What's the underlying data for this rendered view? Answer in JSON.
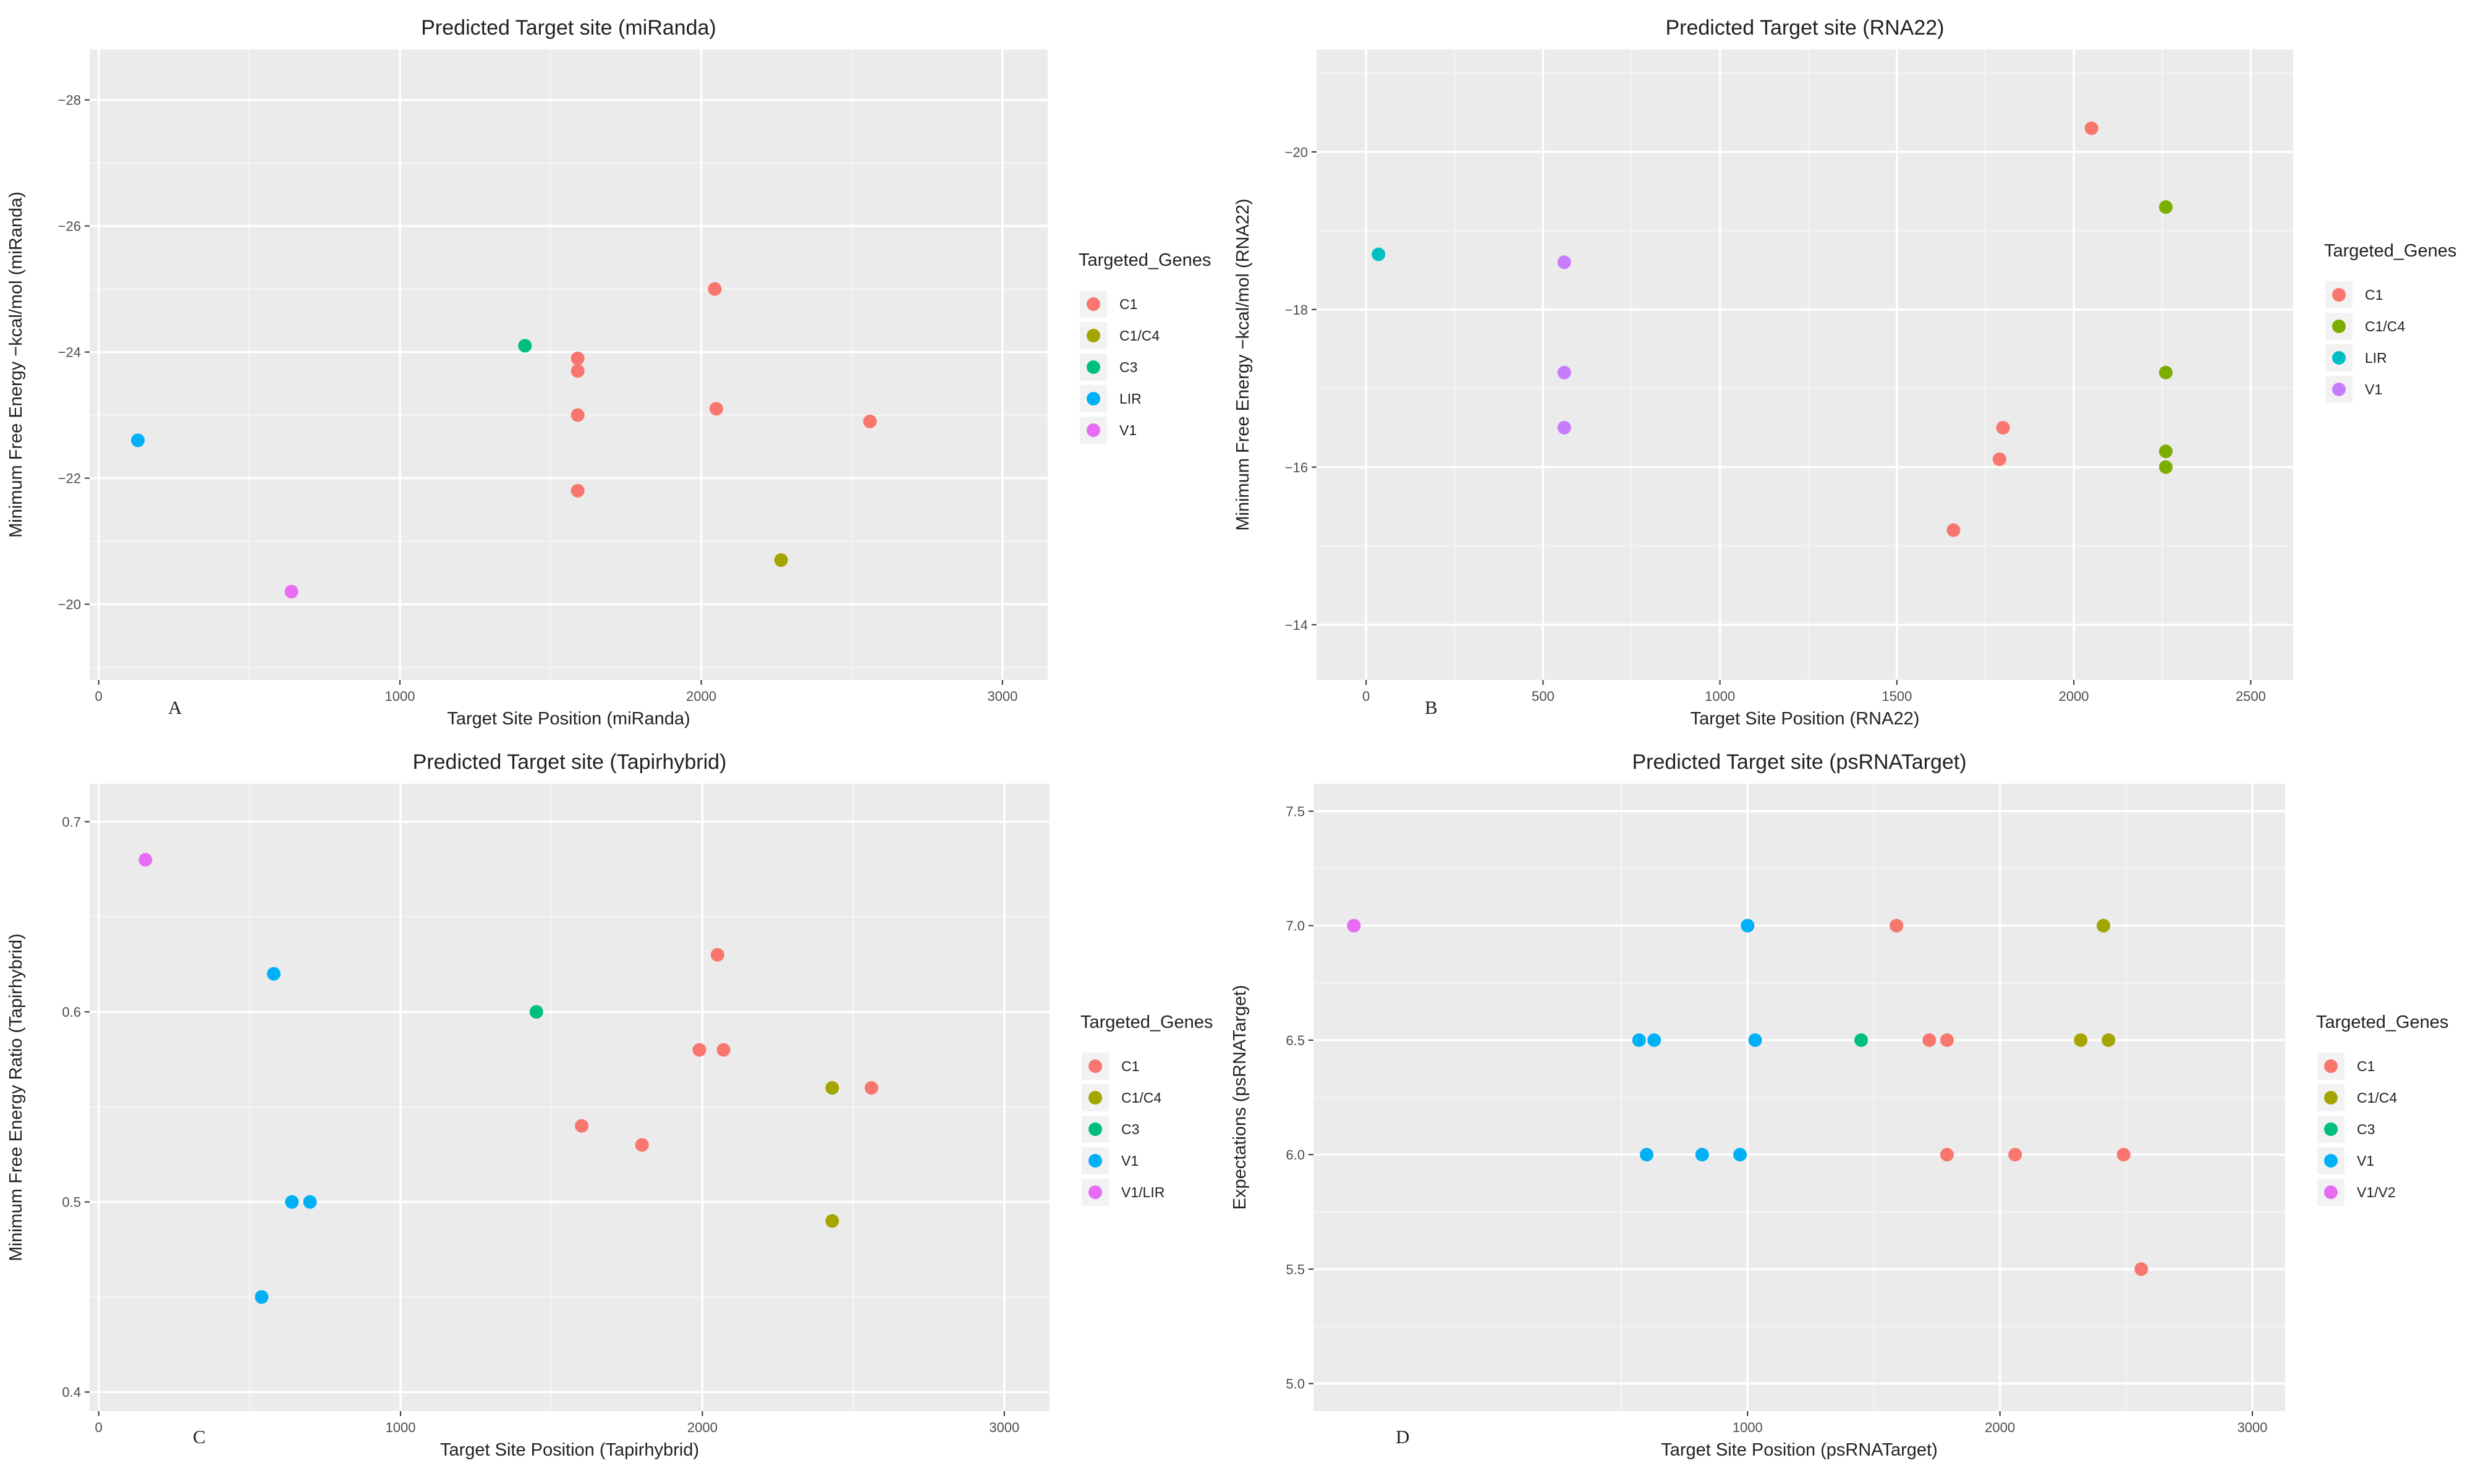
{
  "chart_data": [
    {
      "type": "scatter",
      "panel": "A",
      "title": "Predicted Target site (miRanda)",
      "xlabel": "Target Site Position (miRanda)",
      "ylabel": "Minimum Free Energy −kcal/mol (miRanda)",
      "xlim": [
        -30,
        3150
      ],
      "ylim": [
        -18.8,
        -28.8
      ],
      "x_ticks": [
        0,
        1000,
        2000,
        3000
      ],
      "y_ticks": [
        -20,
        -22,
        -24,
        -26,
        -28
      ],
      "legend_title": "Targeted_Genes",
      "legend_position": "right",
      "grid": true,
      "series": [
        {
          "name": "C1",
          "color": "#F8766D",
          "points": [
            [
              2045,
              -25.0
            ],
            [
              1590,
              -23.9
            ],
            [
              1590,
              -23.7
            ],
            [
              1590,
              -23.0
            ],
            [
              2050,
              -23.1
            ],
            [
              2560,
              -22.9
            ],
            [
              1590,
              -21.8
            ]
          ]
        },
        {
          "name": "C1/C4",
          "color": "#A3A500",
          "points": [
            [
              2265,
              -20.7
            ]
          ]
        },
        {
          "name": "C3",
          "color": "#00BF7D",
          "points": [
            [
              1415,
              -24.1
            ]
          ]
        },
        {
          "name": "LIR",
          "color": "#00B0F6",
          "points": [
            [
              130,
              -22.6
            ]
          ]
        },
        {
          "name": "V1",
          "color": "#E76BF3",
          "points": [
            [
              640,
              -20.2
            ]
          ]
        }
      ]
    },
    {
      "type": "scatter",
      "panel": "B",
      "title": "Predicted Target site (RNA22)",
      "xlabel": "Target Site Position (RNA22)",
      "ylabel": "Minimum Free Energy −kcal/mol (RNA22)",
      "xlim": [
        -140,
        2620
      ],
      "ylim": [
        -13.3,
        -21.3
      ],
      "x_ticks": [
        0,
        500,
        1000,
        1500,
        2000,
        2500
      ],
      "y_ticks": [
        -14,
        -16,
        -18,
        -20
      ],
      "legend_title": "Targeted_Genes",
      "legend_position": "right",
      "grid": true,
      "series": [
        {
          "name": "C1",
          "color": "#F8766D",
          "points": [
            [
              2050,
              -20.3
            ],
            [
              1800,
              -16.5
            ],
            [
              1790,
              -16.1
            ],
            [
              1660,
              -15.2
            ]
          ]
        },
        {
          "name": "C1/C4",
          "color": "#7CAE00",
          "points": [
            [
              2260,
              -19.3
            ],
            [
              2260,
              -17.2
            ],
            [
              2260,
              -16.2
            ],
            [
              2260,
              -16.0
            ]
          ]
        },
        {
          "name": "LIR",
          "color": "#00BFC4",
          "points": [
            [
              35,
              -18.7
            ]
          ]
        },
        {
          "name": "V1",
          "color": "#C77CFF",
          "points": [
            [
              560,
              -18.6
            ],
            [
              560,
              -17.2
            ],
            [
              560,
              -16.5
            ]
          ]
        }
      ]
    },
    {
      "type": "scatter",
      "panel": "C",
      "title": "Predicted Target site (Tapirhybrid)",
      "xlabel": "Target Site Position (Tapirhybrid)",
      "ylabel": "Minimum Free Energy Ratio (Tapirhybrid)",
      "xlim": [
        -30,
        3150
      ],
      "ylim": [
        0.39,
        0.72
      ],
      "x_ticks": [
        0,
        1000,
        2000,
        3000
      ],
      "y_ticks": [
        0.4,
        0.5,
        0.6,
        0.7
      ],
      "legend_title": "Targeted_Genes",
      "legend_position": "right",
      "grid": true,
      "series": [
        {
          "name": "C1",
          "color": "#F8766D",
          "points": [
            [
              2050,
              0.63
            ],
            [
              1990,
              0.58
            ],
            [
              2070,
              0.58
            ],
            [
              2560,
              0.56
            ],
            [
              1600,
              0.54
            ],
            [
              1800,
              0.53
            ]
          ]
        },
        {
          "name": "C1/C4",
          "color": "#A3A500",
          "points": [
            [
              2430,
              0.56
            ],
            [
              2430,
              0.49
            ]
          ]
        },
        {
          "name": "C3",
          "color": "#00BF7D",
          "points": [
            [
              1450,
              0.6
            ]
          ]
        },
        {
          "name": "V1",
          "color": "#00B0F6",
          "points": [
            [
              580,
              0.62
            ],
            [
              640,
              0.5
            ],
            [
              700,
              0.5
            ],
            [
              540,
              0.45
            ]
          ]
        },
        {
          "name": "V1/LIR",
          "color": "#E76BF3",
          "points": [
            [
              155,
              0.68
            ]
          ]
        }
      ]
    },
    {
      "type": "scatter",
      "panel": "D",
      "title": "Predicted Target site (psRNATarget)",
      "xlabel": "Target Site Position (psRNATarget)",
      "ylabel": "Expectations (psRNATarget)",
      "xlim": [
        -720,
        3130
      ],
      "ylim": [
        4.88,
        7.62
      ],
      "x_ticks": [
        1000,
        2000,
        3000
      ],
      "y_ticks": [
        5.0,
        5.5,
        6.0,
        6.5,
        7.0,
        7.5
      ],
      "legend_title": "Targeted_Genes",
      "legend_position": "right",
      "grid": true,
      "series": [
        {
          "name": "C1",
          "color": "#F8766D",
          "points": [
            [
              1590,
              7.0
            ],
            [
              1720,
              6.5
            ],
            [
              1790,
              6.5
            ],
            [
              1790,
              6.0
            ],
            [
              2060,
              6.0
            ],
            [
              2490,
              6.0
            ],
            [
              2560,
              5.5
            ]
          ]
        },
        {
          "name": "C1/C4",
          "color": "#A3A500",
          "points": [
            [
              2410,
              7.0
            ],
            [
              2320,
              6.5
            ],
            [
              2430,
              6.5
            ]
          ]
        },
        {
          "name": "C3",
          "color": "#00BF7D",
          "points": [
            [
              1450,
              6.5
            ]
          ]
        },
        {
          "name": "V1",
          "color": "#00B0F6",
          "points": [
            [
              1000,
              7.0
            ],
            [
              570,
              6.5
            ],
            [
              630,
              6.5
            ],
            [
              1030,
              6.5
            ],
            [
              600,
              6.0
            ],
            [
              820,
              6.0
            ],
            [
              970,
              6.0
            ]
          ]
        },
        {
          "name": "V1/V2",
          "color": "#E76BF3",
          "points": [
            [
              -560,
              7.0
            ]
          ]
        }
      ]
    }
  ]
}
